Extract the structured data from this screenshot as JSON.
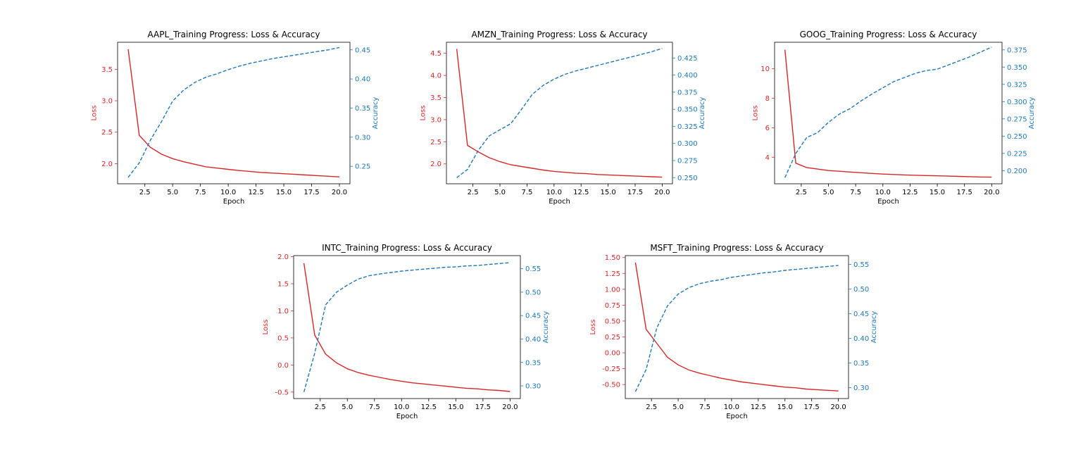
{
  "figure_background": "#ffffff",
  "colors": {
    "loss": "#d62728",
    "accuracy": "#1f77b4",
    "axes": "#000000"
  },
  "chart_data": [
    {
      "type": "line",
      "title": "AAPL_Training Progress: Loss & Accuracy",
      "xlabel": "Epoch",
      "ylabel_left": "Loss",
      "ylabel_right": "Accuracy",
      "xlim": [
        0.05,
        20.95
      ],
      "ylim_left": [
        1.68,
        3.93
      ],
      "ylim_right": [
        0.22,
        0.463
      ],
      "xticks": [
        "2.5",
        "5.0",
        "7.5",
        "10.0",
        "12.5",
        "15.0",
        "17.5",
        "20.0"
      ],
      "yticks_left": [
        "2.0",
        "2.5",
        "3.0",
        "3.5"
      ],
      "yticks_right": [
        "0.25",
        "0.30",
        "0.35",
        "0.40",
        "0.45"
      ],
      "x": [
        1,
        2,
        3,
        4,
        5,
        6,
        7,
        8,
        9,
        10,
        11,
        12,
        13,
        14,
        15,
        16,
        17,
        18,
        19,
        20
      ],
      "series": [
        {
          "name": "Loss",
          "axis": "left",
          "style": "solid",
          "values": [
            3.82,
            2.45,
            2.26,
            2.15,
            2.08,
            2.03,
            1.99,
            1.95,
            1.93,
            1.91,
            1.89,
            1.875,
            1.86,
            1.85,
            1.84,
            1.83,
            1.82,
            1.81,
            1.8,
            1.79
          ]
        },
        {
          "name": "Accuracy",
          "axis": "right",
          "style": "dashed",
          "values": [
            0.231,
            0.256,
            0.295,
            0.327,
            0.362,
            0.381,
            0.394,
            0.403,
            0.409,
            0.416,
            0.422,
            0.427,
            0.431,
            0.435,
            0.438,
            0.441,
            0.444,
            0.447,
            0.45,
            0.454
          ]
        }
      ]
    },
    {
      "type": "line",
      "title": "AMZN_Training Progress: Loss & Accuracy",
      "xlabel": "Epoch",
      "ylabel_left": "Loss",
      "ylabel_right": "Accuracy",
      "xlim": [
        0.05,
        20.95
      ],
      "ylim_left": [
        1.55,
        4.75
      ],
      "ylim_right": [
        0.241,
        0.448
      ],
      "xticks": [
        "2.5",
        "5.0",
        "7.5",
        "10.0",
        "12.5",
        "15.0",
        "17.5",
        "20.0"
      ],
      "yticks_left": [
        "2.0",
        "2.5",
        "3.0",
        "3.5",
        "4.0",
        "4.5"
      ],
      "yticks_right": [
        "0.250",
        "0.275",
        "0.300",
        "0.325",
        "0.350",
        "0.375",
        "0.400",
        "0.425"
      ],
      "x": [
        1,
        2,
        3,
        4,
        5,
        6,
        7,
        8,
        9,
        10,
        11,
        12,
        13,
        14,
        15,
        16,
        17,
        18,
        19,
        20
      ],
      "series": [
        {
          "name": "Loss",
          "axis": "left",
          "style": "solid",
          "values": [
            4.6,
            2.42,
            2.27,
            2.14,
            2.05,
            1.98,
            1.94,
            1.9,
            1.86,
            1.83,
            1.81,
            1.79,
            1.78,
            1.76,
            1.75,
            1.74,
            1.73,
            1.72,
            1.71,
            1.7
          ]
        },
        {
          "name": "Accuracy",
          "axis": "right",
          "style": "dashed",
          "values": [
            0.25,
            0.262,
            0.29,
            0.311,
            0.32,
            0.329,
            0.35,
            0.372,
            0.385,
            0.394,
            0.401,
            0.406,
            0.41,
            0.414,
            0.418,
            0.422,
            0.426,
            0.43,
            0.434,
            0.439
          ]
        }
      ]
    },
    {
      "type": "line",
      "title": "GOOG_Training Progress: Loss & Accuracy",
      "xlabel": "Epoch",
      "ylabel_left": "Loss",
      "ylabel_right": "Accuracy",
      "xlim": [
        0.05,
        20.95
      ],
      "ylim_left": [
        2.2,
        11.8
      ],
      "ylim_right": [
        0.181,
        0.386
      ],
      "xticks": [
        "2.5",
        "5.0",
        "7.5",
        "10.0",
        "12.5",
        "15.0",
        "17.5",
        "20.0"
      ],
      "yticks_left": [
        "4",
        "6",
        "8",
        "10"
      ],
      "yticks_right": [
        "0.200",
        "0.225",
        "0.250",
        "0.275",
        "0.300",
        "0.325",
        "0.350",
        "0.375"
      ],
      "x": [
        1,
        2,
        3,
        4,
        5,
        6,
        7,
        8,
        9,
        10,
        11,
        12,
        13,
        14,
        15,
        16,
        17,
        18,
        19,
        20
      ],
      "series": [
        {
          "name": "Loss",
          "axis": "left",
          "style": "solid",
          "values": [
            11.3,
            3.6,
            3.3,
            3.2,
            3.1,
            3.05,
            3.0,
            2.95,
            2.9,
            2.86,
            2.83,
            2.8,
            2.78,
            2.76,
            2.74,
            2.72,
            2.7,
            2.68,
            2.66,
            2.65
          ]
        },
        {
          "name": "Accuracy",
          "axis": "right",
          "style": "dashed",
          "values": [
            0.19,
            0.225,
            0.248,
            0.255,
            0.27,
            0.282,
            0.29,
            0.301,
            0.311,
            0.32,
            0.329,
            0.335,
            0.341,
            0.345,
            0.347,
            0.353,
            0.359,
            0.365,
            0.372,
            0.379
          ]
        }
      ]
    },
    {
      "type": "line",
      "title": "INTC_Training Progress: Loss & Accuracy",
      "xlabel": "Epoch",
      "ylabel_left": "Loss",
      "ylabel_right": "Accuracy",
      "xlim": [
        0.05,
        20.95
      ],
      "ylim_left": [
        -0.62,
        2.02
      ],
      "ylim_right": [
        0.273,
        0.578
      ],
      "xticks": [
        "2.5",
        "5.0",
        "7.5",
        "10.0",
        "12.5",
        "15.0",
        "17.5",
        "20.0"
      ],
      "yticks_left": [
        "-0.5",
        "0.0",
        "0.5",
        "1.0",
        "1.5",
        "2.0"
      ],
      "yticks_right": [
        "0.30",
        "0.35",
        "0.40",
        "0.45",
        "0.50",
        "0.55"
      ],
      "x": [
        1,
        2,
        3,
        4,
        5,
        6,
        7,
        8,
        9,
        10,
        11,
        12,
        13,
        14,
        15,
        16,
        17,
        18,
        19,
        20
      ],
      "series": [
        {
          "name": "Loss",
          "axis": "left",
          "style": "solid",
          "values": [
            1.88,
            0.55,
            0.2,
            0.04,
            -0.07,
            -0.14,
            -0.19,
            -0.23,
            -0.27,
            -0.3,
            -0.33,
            -0.35,
            -0.37,
            -0.39,
            -0.41,
            -0.43,
            -0.44,
            -0.46,
            -0.47,
            -0.49
          ]
        },
        {
          "name": "Accuracy",
          "axis": "right",
          "style": "dashed",
          "values": [
            0.287,
            0.37,
            0.473,
            0.5,
            0.515,
            0.528,
            0.535,
            0.539,
            0.542,
            0.545,
            0.547,
            0.549,
            0.551,
            0.553,
            0.554,
            0.556,
            0.557,
            0.559,
            0.561,
            0.563
          ]
        }
      ]
    },
    {
      "type": "line",
      "title": "MSFT_Training Progress: Loss & Accuracy",
      "xlabel": "Epoch",
      "ylabel_left": "Loss",
      "ylabel_right": "Accuracy",
      "xlim": [
        0.05,
        20.95
      ],
      "ylim_left": [
        -0.72,
        1.53
      ],
      "ylim_right": [
        0.278,
        0.568
      ],
      "xticks": [
        "2.5",
        "5.0",
        "7.5",
        "10.0",
        "12.5",
        "15.0",
        "17.5",
        "20.0"
      ],
      "yticks_left": [
        "-0.50",
        "-0.25",
        "0.00",
        "0.25",
        "0.50",
        "0.75",
        "1.00",
        "1.25",
        "1.50"
      ],
      "yticks_right": [
        "0.30",
        "0.35",
        "0.40",
        "0.45",
        "0.50",
        "0.55"
      ],
      "x": [
        1,
        2,
        3,
        4,
        5,
        6,
        7,
        8,
        9,
        10,
        11,
        12,
        13,
        14,
        15,
        16,
        17,
        18,
        19,
        20
      ],
      "series": [
        {
          "name": "Loss",
          "axis": "left",
          "style": "solid",
          "values": [
            1.42,
            0.37,
            0.15,
            -0.07,
            -0.19,
            -0.27,
            -0.32,
            -0.36,
            -0.4,
            -0.43,
            -0.46,
            -0.48,
            -0.5,
            -0.52,
            -0.54,
            -0.55,
            -0.57,
            -0.58,
            -0.59,
            -0.6
          ]
        },
        {
          "name": "Accuracy",
          "axis": "right",
          "style": "dashed",
          "values": [
            0.292,
            0.337,
            0.421,
            0.466,
            0.49,
            0.503,
            0.511,
            0.516,
            0.519,
            0.524,
            0.527,
            0.53,
            0.533,
            0.535,
            0.538,
            0.54,
            0.542,
            0.544,
            0.546,
            0.548
          ]
        }
      ]
    }
  ]
}
